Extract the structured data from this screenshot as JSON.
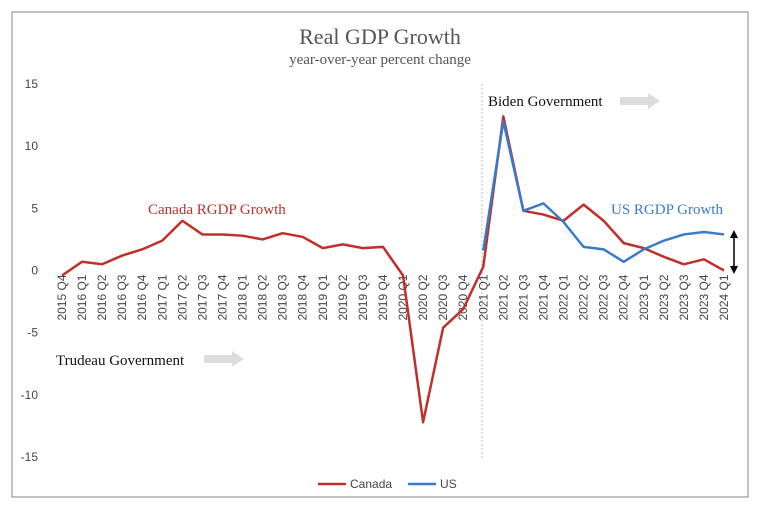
{
  "chart_data": {
    "type": "line",
    "title": "Real GDP Growth",
    "subtitle": "year-over-year percent change",
    "categories": [
      "2015 Q4",
      "2016 Q1",
      "2016 Q2",
      "2016 Q3",
      "2016 Q4",
      "2017 Q1",
      "2017 Q2",
      "2017 Q3",
      "2017 Q4",
      "2018 Q1",
      "2018 Q2",
      "2018 Q3",
      "2018 Q4",
      "2019 Q1",
      "2019 Q2",
      "2019 Q3",
      "2019 Q4",
      "2020 Q1",
      "2020 Q2",
      "2020 Q3",
      "2020 Q4",
      "2021 Q1",
      "2021 Q2",
      "2021 Q3",
      "2021 Q4",
      "2022 Q1",
      "2022 Q2",
      "2022 Q3",
      "2022 Q4",
      "2023 Q1",
      "2023 Q2",
      "2023 Q3",
      "2023 Q4",
      "2024 Q1"
    ],
    "series": [
      {
        "name": "Canada",
        "color": "#c0302a",
        "values": [
          -0.4,
          0.7,
          0.5,
          1.2,
          1.7,
          2.4,
          4.0,
          2.9,
          2.9,
          2.8,
          2.5,
          3.0,
          2.7,
          1.8,
          2.1,
          1.8,
          1.9,
          -0.4,
          -12.2,
          -4.6,
          -3.1,
          0.3,
          12.4,
          4.8,
          4.5,
          4.0,
          5.3,
          4.0,
          2.2,
          1.8,
          1.1,
          0.5,
          0.9,
          0.0
        ]
      },
      {
        "name": "US",
        "color": "#3a7bc8",
        "values": [
          null,
          null,
          null,
          null,
          null,
          null,
          null,
          null,
          null,
          null,
          null,
          null,
          null,
          null,
          null,
          null,
          null,
          null,
          null,
          null,
          null,
          1.6,
          12.0,
          4.8,
          5.4,
          3.9,
          1.9,
          1.7,
          0.7,
          1.7,
          2.4,
          2.9,
          3.1,
          2.9
        ]
      }
    ],
    "ylim": [
      -15,
      15
    ],
    "yticks": [
      -15,
      -10,
      -5,
      0,
      5,
      10,
      15
    ],
    "annotations": {
      "canada": "Canada RGDP Growth",
      "us": "US RGDP Growth",
      "biden": "Biden Government",
      "trudeau": "Trudeau Government"
    },
    "legend": "bottom"
  }
}
